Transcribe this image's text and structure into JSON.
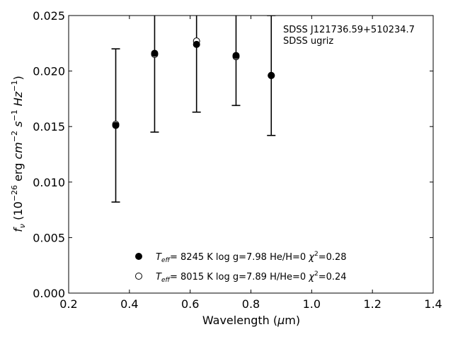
{
  "chart_data": {
    "type": "scatter",
    "title": "",
    "xlabel": "Wavelength (μm)",
    "ylabel": "f_ν (10^-26 erg cm^-2 s^-1 Hz^-1)",
    "xlim": [
      0.2,
      1.4
    ],
    "ylim": [
      0.0,
      0.025
    ],
    "x_ticks": [
      "0.2",
      "0.4",
      "0.6",
      "0.8",
      "1.0",
      "1.2",
      "1.4"
    ],
    "y_ticks": [
      "0.000",
      "0.005",
      "0.010",
      "0.015",
      "0.020",
      "0.025"
    ],
    "grid": false,
    "legend_position": "lower-center",
    "annotation": {
      "line1": "SDSS J121736.59+510234.7",
      "line2": "SDSS ugriz"
    },
    "observed": {
      "x": [
        0.355,
        0.483,
        0.621,
        0.751,
        0.867
      ],
      "y": [
        0.0151,
        0.0216,
        0.0224,
        0.0213,
        0.0196
      ],
      "yerr": [
        0.0069,
        0.0071,
        0.0061,
        0.0044,
        0.0054
      ]
    },
    "series": [
      {
        "name_prefix": "T",
        "name_sub": "eff",
        "name_rest": "=  8245 K  log g=7.98  He/H=0  ",
        "chi_label": "χ",
        "chi_sup": "2",
        "chi_value": "=0.28",
        "marker": "filled",
        "x": [
          0.355,
          0.483,
          0.621,
          0.751,
          0.867
        ],
        "y": [
          0.0151,
          0.0216,
          0.0224,
          0.0214,
          0.0196
        ]
      },
      {
        "name_prefix": "T",
        "name_sub": "eff",
        "name_rest": "=  8015 K  log g=7.89  H/He=0  ",
        "chi_label": "χ",
        "chi_sup": "2",
        "chi_value": "=0.24",
        "marker": "open",
        "x": [
          0.355,
          0.483,
          0.621,
          0.751,
          0.867
        ],
        "y": [
          0.0152,
          0.0215,
          0.0227,
          0.0213,
          0.0196
        ]
      }
    ],
    "colors": {
      "marker": "#000000",
      "axis": "#000000"
    }
  }
}
